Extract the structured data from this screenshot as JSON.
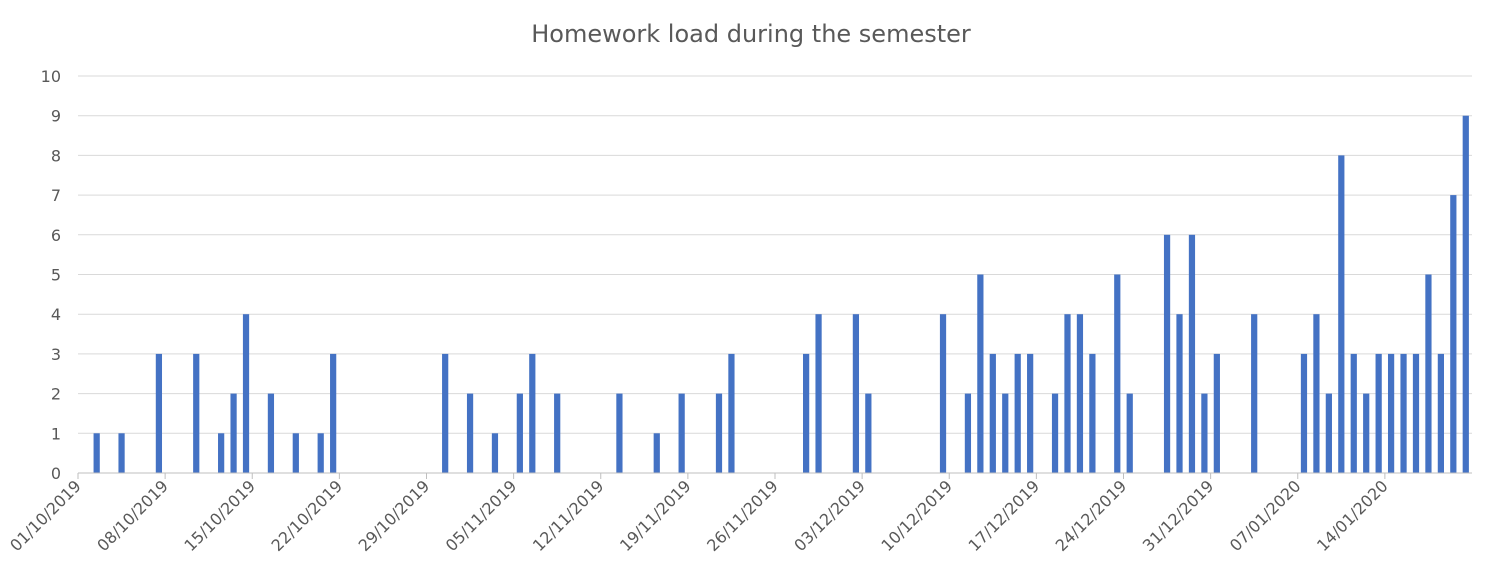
{
  "chart_data": {
    "type": "bar",
    "title": "Homework load during the semester",
    "xlabel": "",
    "ylabel": "",
    "ylim": [
      0,
      10
    ],
    "y_ticks": [
      "0",
      "1",
      "2",
      "3",
      "4",
      "5",
      "6",
      "7",
      "8",
      "9",
      "10"
    ],
    "x_range": [
      "2019-10-01",
      "2020-01-20"
    ],
    "x_tick_labels": [
      "01/10/2019",
      "08/10/2019",
      "15/10/2019",
      "22/10/2019",
      "29/10/2019",
      "05/11/2019",
      "12/11/2019",
      "19/11/2019",
      "26/11/2019",
      "03/12/2019",
      "10/12/2019",
      "17/12/2019",
      "24/12/2019",
      "31/12/2019",
      "07/01/2020",
      "14/01/2020"
    ],
    "grid": true,
    "legend": "none",
    "bar_color": "#4472c4",
    "x": [
      "2019-10-02",
      "2019-10-04",
      "2019-10-07",
      "2019-10-10",
      "2019-10-12",
      "2019-10-13",
      "2019-10-14",
      "2019-10-16",
      "2019-10-18",
      "2019-10-20",
      "2019-10-21",
      "2019-10-30",
      "2019-11-01",
      "2019-11-03",
      "2019-11-05",
      "2019-11-06",
      "2019-11-08",
      "2019-11-13",
      "2019-11-16",
      "2019-11-18",
      "2019-11-21",
      "2019-11-22",
      "2019-11-28",
      "2019-11-29",
      "2019-12-02",
      "2019-12-03",
      "2019-12-09",
      "2019-12-11",
      "2019-12-12",
      "2019-12-13",
      "2019-12-14",
      "2019-12-15",
      "2019-12-16",
      "2019-12-18",
      "2019-12-19",
      "2019-12-20",
      "2019-12-21",
      "2019-12-23",
      "2019-12-24",
      "2019-12-27",
      "2019-12-28",
      "2019-12-29",
      "2019-12-30",
      "2019-12-31",
      "2020-01-03",
      "2020-01-07",
      "2020-01-08",
      "2020-01-09",
      "2020-01-10",
      "2020-01-11",
      "2020-01-12",
      "2020-01-13",
      "2020-01-14",
      "2020-01-15",
      "2020-01-16",
      "2020-01-17",
      "2020-01-18",
      "2020-01-19",
      "2020-01-20"
    ],
    "values": [
      1,
      1,
      3,
      3,
      1,
      2,
      4,
      2,
      1,
      1,
      3,
      3,
      2,
      1,
      2,
      3,
      2,
      2,
      1,
      2,
      2,
      3,
      3,
      4,
      4,
      2,
      4,
      2,
      5,
      3,
      2,
      3,
      3,
      2,
      4,
      4,
      3,
      5,
      2,
      6,
      4,
      6,
      2,
      3,
      4,
      3,
      4,
      2,
      8,
      3,
      2,
      3,
      3,
      3,
      3,
      5,
      3,
      7,
      9
    ]
  }
}
